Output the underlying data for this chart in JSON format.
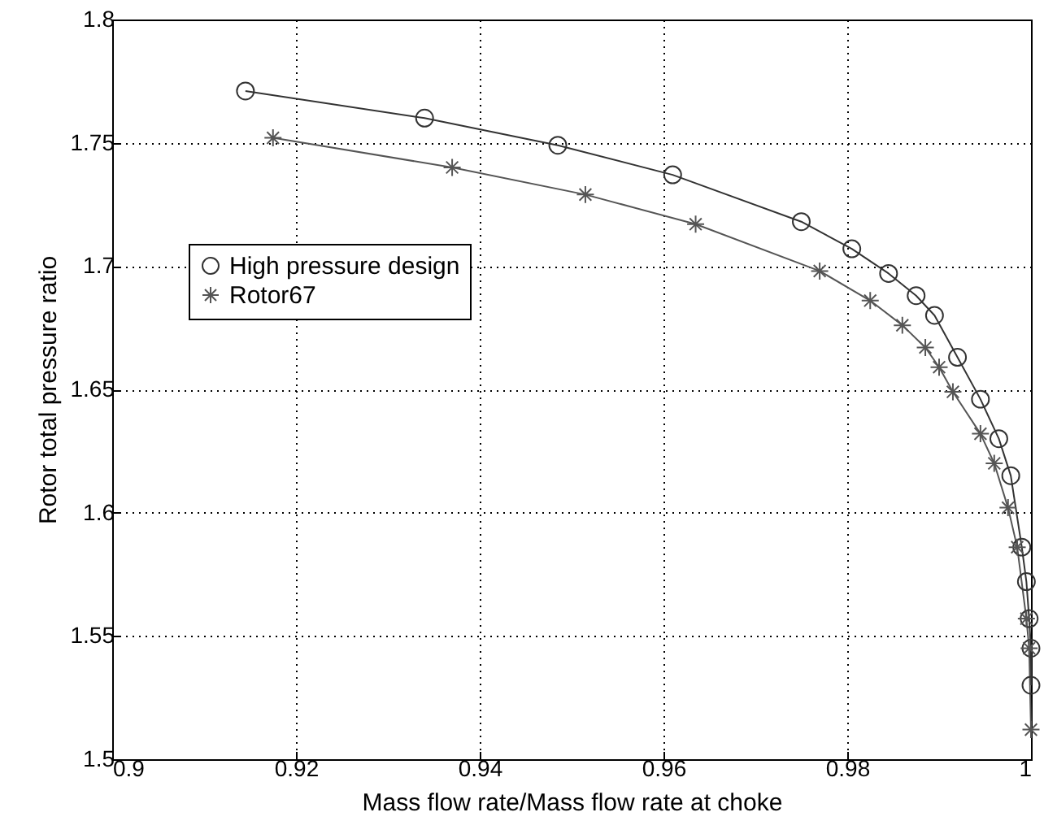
{
  "chart_data": {
    "type": "line",
    "xlabel": "Mass flow rate/Mass flow rate at choke",
    "ylabel": "Rotor total pressure ratio",
    "xlim": [
      0.9,
      1
    ],
    "xticks": [
      0.9,
      0.92,
      0.94,
      0.96,
      0.98,
      1
    ],
    "ylim": [
      1.5,
      1.8
    ],
    "yticks": [
      1.5,
      1.55,
      1.6,
      1.65,
      1.7,
      1.75,
      1.8
    ],
    "grid": true,
    "legend": "left",
    "line_style": "solid",
    "series": [
      {
        "name": "High pressure design",
        "color": "#333333",
        "marker": "circle",
        "x": [
          0.9145,
          0.934,
          0.9485,
          0.961,
          0.975,
          0.9805,
          0.9845,
          0.9875,
          0.9895,
          0.992,
          0.9945,
          0.9965,
          0.9978,
          0.999,
          0.9995,
          0.9998,
          1.0,
          1.0
        ],
        "values": [
          1.771,
          1.76,
          1.749,
          1.737,
          1.718,
          1.707,
          1.697,
          1.688,
          1.68,
          1.663,
          1.646,
          1.63,
          1.615,
          1.586,
          1.572,
          1.557,
          1.545,
          1.53
        ]
      },
      {
        "name": "Rotor67",
        "color": "#555555",
        "marker": "cross",
        "x": [
          0.9175,
          0.937,
          0.9515,
          0.9635,
          0.977,
          0.9825,
          0.986,
          0.9885,
          0.99,
          0.9915,
          0.9945,
          0.996,
          0.9975,
          0.9985,
          0.9995,
          0.9998,
          1.0
        ],
        "values": [
          1.752,
          1.74,
          1.729,
          1.717,
          1.698,
          1.686,
          1.676,
          1.667,
          1.659,
          1.649,
          1.632,
          1.62,
          1.602,
          1.586,
          1.557,
          1.545,
          1.512
        ]
      }
    ]
  }
}
